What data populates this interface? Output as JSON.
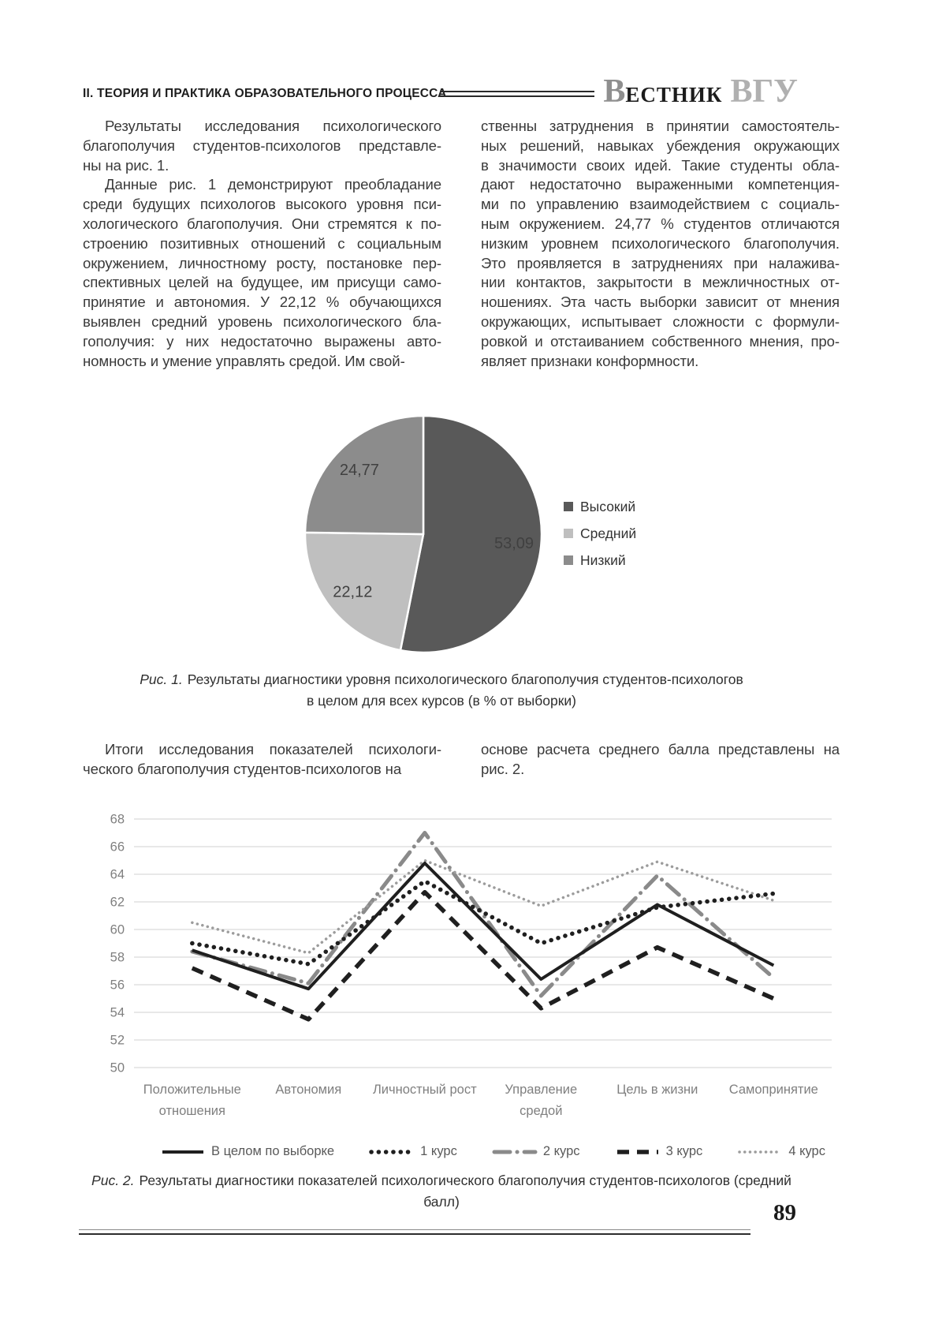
{
  "header": {
    "section_title": "II. ТЕОРИЯ И ПРАКТИКА ОБРАЗОВАТЕЛЬНОГО ПРОЦЕССА",
    "journal_logo": {
      "initial": "В",
      "rest": "ЕСТНИК",
      "suffix": "ВГУ"
    }
  },
  "article": {
    "columns_top": {
      "left": [
        {
          "indent": true,
          "lines": [
            "Результаты исследования психологического",
            "благополучия студентов-психологов представле-",
            "ны на рис. 1."
          ]
        },
        {
          "indent": true,
          "lines": [
            "Данные рис. 1 демонстрируют преобладание",
            "среди будущих психологов высокого уровня пси-",
            "хологического благополучия. Они стремятся к по-",
            "строению позитивных отношений с социальным",
            "окружением, личностному росту, постановке пер-",
            "спективных целей на будущее, им присущи само-",
            "принятие и автономия. У 22,12 % обучающихся",
            "выявлен средний уровень психологического бла-",
            "гополучия: у них недостаточно выражены авто-",
            "номность и умение управлять средой. Им свой-"
          ]
        }
      ],
      "right": [
        {
          "indent": false,
          "lines": [
            "ственны затруднения в принятии самостоятель-",
            "ных решений, навыках убеждения окружающих",
            "в значимости своих идей. Такие студенты обла-",
            "дают недостаточно выраженными компетенция-",
            "ми по управлению взаимодействием с социаль-",
            "ным окружением. 24,77 % студентов отличаются",
            "низким уровнем психологического благополучия.",
            "Это проявляется в затруднениях при налажива-",
            "нии контактов, закрытости в межличностных от-",
            "ношениях. Эта часть выборки зависит от мнения",
            "окружающих, испытывает сложности с формули-",
            "ровкой и отстаиванием собственного мнения, про-",
            "являет признаки конформности."
          ]
        }
      ]
    },
    "columns_mid": {
      "left": [
        {
          "indent": true,
          "lines": [
            "Итоги исследования показателей психологи-",
            "ческого благополучия студентов-психологов на"
          ]
        }
      ],
      "right": [
        {
          "indent": false,
          "lines": [
            "основе расчета среднего балла представлены на",
            "рис. 2."
          ]
        }
      ]
    }
  },
  "figure1": {
    "caption_prefix": "Рис. 1.",
    "caption_line1": "Результаты диагностики уровня психологического благополучия студентов-психологов",
    "caption_line2": "в целом для всех курсов (в % от выборки)"
  },
  "figure2": {
    "caption_prefix": "Рис. 2.",
    "caption_text": "Результаты диагностики показателей психологического благополучия студентов-психологов (средний балл)"
  },
  "footer": {
    "page_number": "89"
  },
  "chart_data": [
    {
      "type": "pie",
      "title": "",
      "slices": [
        {
          "label": "Высокий",
          "value": 53.09,
          "value_label": "53,09",
          "color": "#595959"
        },
        {
          "label": "Средний",
          "value": 22.12,
          "value_label": "22,12",
          "color": "#bfbfbf"
        },
        {
          "label": "Низкий",
          "value": 24.77,
          "value_label": "24,77",
          "color": "#8c8c8c"
        }
      ],
      "start_angle_deg": 0,
      "direction": "clockwise",
      "legend_position": "right",
      "label_color": "#404040"
    },
    {
      "type": "line",
      "title": "",
      "xlabel": "",
      "ylabel": "",
      "ylim": [
        50,
        68
      ],
      "ytick_step": 2,
      "grid": true,
      "legend_position": "bottom",
      "categories": [
        "Положительные\nотношения",
        "Автономия",
        "Личностный рост",
        "Управление\nсредой",
        "Цель в жизни",
        "Самопринятие"
      ],
      "series": [
        {
          "name": "В целом по выборке",
          "values": [
            58.5,
            55.7,
            64.8,
            56.4,
            61.8,
            57.4
          ],
          "color": "#1f1f1f",
          "style": "solid",
          "width": 4
        },
        {
          "name": "1 курс",
          "values": [
            59.0,
            57.5,
            63.5,
            59.0,
            61.6,
            62.6
          ],
          "color": "#1f1f1f",
          "style": "dot-bold",
          "width": 5.5
        },
        {
          "name": "2 курс",
          "values": [
            58.4,
            56.1,
            67.0,
            55.2,
            63.9,
            56.5
          ],
          "color": "#8a8a8a",
          "style": "long-dash-dot",
          "width": 5
        },
        {
          "name": "3 курс",
          "values": [
            57.2,
            53.5,
            62.7,
            54.3,
            58.7,
            55.0
          ],
          "color": "#1f1f1f",
          "style": "dash",
          "width": 5.5
        },
        {
          "name": "4 курс",
          "values": [
            60.5,
            58.3,
            65.0,
            61.7,
            64.9,
            62.1
          ],
          "color": "#9c9c9c",
          "style": "dot",
          "width": 3.5
        }
      ],
      "axis_label_color": "#7f7f7f",
      "grid_color": "#d9d9d9"
    }
  ]
}
